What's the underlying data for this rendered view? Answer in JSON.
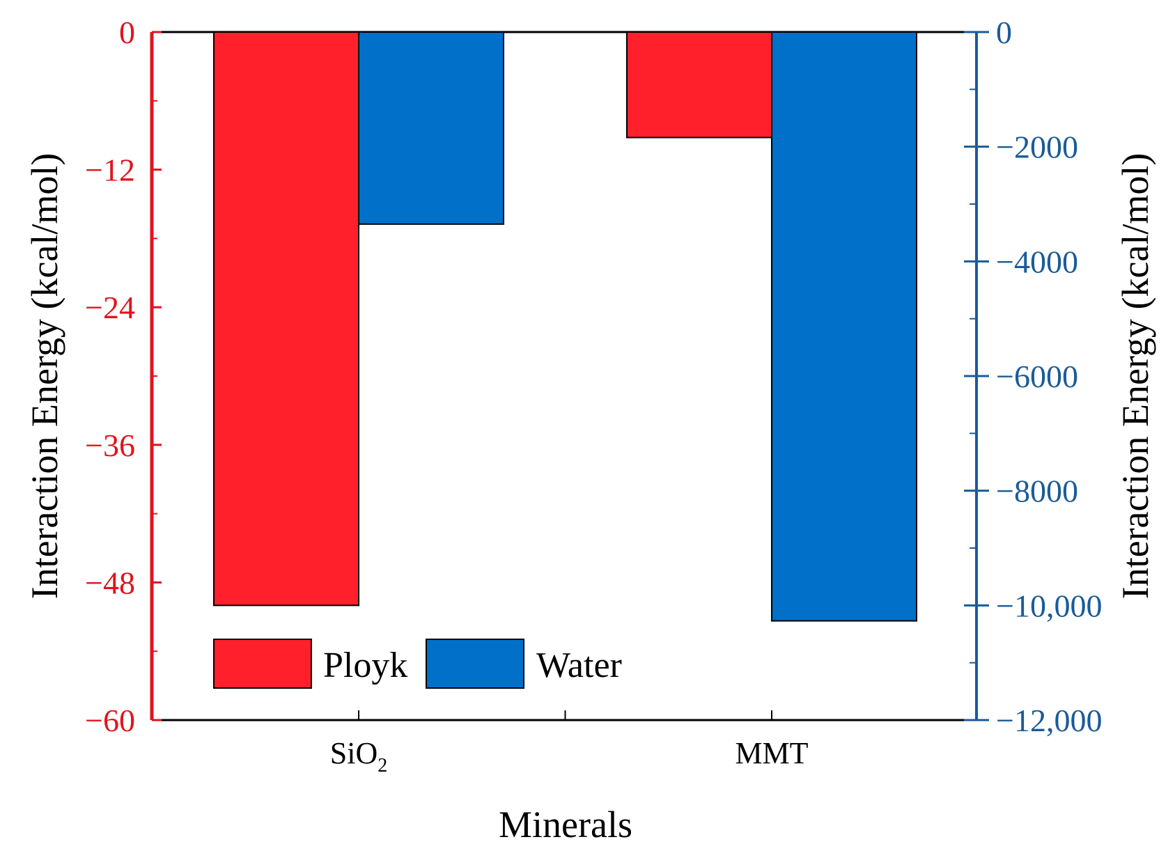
{
  "chart_data": {
    "type": "bar",
    "dual_axis": true,
    "categories": [
      "SiO",
      "MMT"
    ],
    "category_subscripts": [
      "2",
      ""
    ],
    "series": [
      {
        "name": "Ployk",
        "axis": "left",
        "color": "#ff202c",
        "values": [
          -50,
          -9.2
        ]
      },
      {
        "name": "Water",
        "axis": "right",
        "color": "#0070c8",
        "values": [
          -3350,
          -10270
        ]
      }
    ],
    "xlabel": "Minerals",
    "ylabel_left": "Interaction Energy (kcal/mol)",
    "ylabel_right": "Interaction Energy (kcal/mol)",
    "ylim_left": [
      -60,
      0
    ],
    "ylim_right": [
      -12000,
      0
    ],
    "yticks_left": [
      0,
      -12,
      -24,
      -36,
      -48,
      -60
    ],
    "yticks_left_labels": [
      "0",
      "−12",
      "−24",
      "−36",
      "−48",
      "−60"
    ],
    "yticks_right": [
      0,
      -2000,
      -4000,
      -6000,
      -8000,
      -10000,
      -12000
    ],
    "yticks_right_labels": [
      "0",
      "−2000",
      "−4000",
      "−6000",
      "−8000",
      "−10,000",
      "−12,000"
    ],
    "left_axis_color": "#e0141e",
    "right_axis_color": "#1a5b98",
    "legend": {
      "position": "bottom-left",
      "entries": [
        "Ployk",
        "Water"
      ]
    }
  }
}
